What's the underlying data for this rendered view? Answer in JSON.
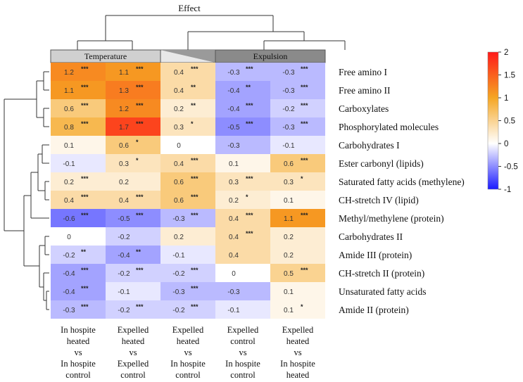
{
  "chart_data": {
    "type": "heatmap",
    "title": "Effect",
    "groups": [
      {
        "label": "Temperature",
        "columns": [
          0,
          1
        ]
      },
      {
        "label": "",
        "columns": [
          2
        ]
      },
      {
        "label": "Expulsion",
        "columns": [
          3,
          4
        ]
      }
    ],
    "columns": [
      [
        "In hospite",
        "heated",
        "vs",
        "In hospite",
        "control"
      ],
      [
        "Expelled",
        "heated",
        "vs",
        "Expelled",
        "control"
      ],
      [
        "Expelled",
        "heated",
        "vs",
        "In hospite",
        "control"
      ],
      [
        "Expelled",
        "control",
        "vs",
        "In hospite",
        "control"
      ],
      [
        "Expelled",
        "heated",
        "vs",
        "In hospite",
        "heated"
      ]
    ],
    "rows": [
      "Free amino I",
      "Free amino II",
      "Carboxylates",
      "Phosphorylated molecules",
      "Carbohydrates I",
      "Ester carbonyl (lipids)",
      "Saturated fatty acids (methylene)",
      "CH-stretch IV (lipid)",
      "Methyl/methylene (protein)",
      "Carbohydrates II",
      "Amide III (protein)",
      "CH-stretch II (protein)",
      "Unsaturated fatty acids",
      "Amide II (protein)"
    ],
    "values": [
      [
        1.2,
        1.1,
        0.4,
        -0.3,
        -0.3
      ],
      [
        1.1,
        1.3,
        0.4,
        -0.4,
        -0.3
      ],
      [
        0.6,
        1.2,
        0.2,
        -0.4,
        -0.2
      ],
      [
        0.8,
        1.7,
        0.3,
        -0.5,
        -0.3
      ],
      [
        0.1,
        0.6,
        0,
        -0.3,
        -0.1
      ],
      [
        -0.1,
        0.3,
        0.4,
        0.1,
        0.6
      ],
      [
        0.2,
        0.2,
        0.6,
        0.3,
        0.3
      ],
      [
        0.4,
        0.4,
        0.6,
        0.2,
        0.1
      ],
      [
        -0.6,
        -0.5,
        -0.3,
        0.4,
        1.1
      ],
      [
        0,
        -0.2,
        0.2,
        0.4,
        0.2
      ],
      [
        -0.2,
        -0.4,
        -0.1,
        0.4,
        0.2
      ],
      [
        -0.4,
        -0.2,
        -0.2,
        0,
        0.5
      ],
      [
        -0.4,
        -0.1,
        -0.3,
        -0.3,
        0.1
      ],
      [
        -0.3,
        -0.2,
        -0.2,
        -0.1,
        0.1
      ]
    ],
    "labels": [
      [
        "1.2",
        "1.1",
        "0.4",
        "-0.3",
        "-0.3"
      ],
      [
        "1.1",
        "1.3",
        "0.4",
        "-0.4",
        "-0.3"
      ],
      [
        "0.6",
        "1.2",
        "0.2",
        "-0.4",
        "-0.2"
      ],
      [
        "0.8",
        "1.7",
        "0.3",
        "-0.5",
        "-0.3"
      ],
      [
        "0.1",
        "0.6",
        "0",
        "-0.3",
        "-0.1"
      ],
      [
        "-0.1",
        "0.3",
        "0.4",
        "0.1",
        "0.6"
      ],
      [
        "0.2",
        "0.2",
        "0.6",
        "0.3",
        "0.3"
      ],
      [
        "0.4",
        "0.4",
        "0.6",
        "0.2",
        "0.1"
      ],
      [
        "-0.6",
        "-0.5",
        "-0.3",
        "0.4",
        "1.1"
      ],
      [
        "0",
        "-0.2",
        "0.2",
        "0.4",
        "0.2"
      ],
      [
        "-0.2",
        "-0.4",
        "-0.1",
        "0.4",
        "0.2"
      ],
      [
        "-0.4",
        "-0.2",
        "-0.2",
        "0",
        "0.5"
      ],
      [
        "-0.4",
        "-0.1",
        "-0.3",
        "-0.3",
        "0.1"
      ],
      [
        "-0.3",
        "-0.2",
        "-0.2",
        "-0.1",
        "0.1"
      ]
    ],
    "significance": [
      [
        "***",
        "***",
        "***",
        "***",
        "***"
      ],
      [
        "***",
        "***",
        "**",
        "**",
        "***"
      ],
      [
        "***",
        "***",
        "**",
        "***",
        "***"
      ],
      [
        "***",
        "***",
        "*",
        "***",
        "***"
      ],
      [
        "",
        "*",
        "",
        "",
        ""
      ],
      [
        "",
        "*",
        "***",
        "",
        "***"
      ],
      [
        "***",
        "",
        "***",
        "***",
        "*"
      ],
      [
        "***",
        "***",
        "***",
        "*",
        ""
      ],
      [
        "***",
        "***",
        "***",
        "***",
        "***"
      ],
      [
        "",
        "",
        "",
        "***",
        ""
      ],
      [
        "**",
        "**",
        "",
        "",
        ""
      ],
      [
        "***",
        "***",
        "***",
        "",
        "***"
      ],
      [
        "***",
        "",
        "***",
        "",
        ""
      ],
      [
        "***",
        "***",
        "***",
        "",
        "*"
      ]
    ],
    "colorbar": {
      "ticks": [
        "2",
        "1.5",
        "1",
        "0.5",
        "0",
        "-0.5",
        "-1"
      ],
      "min": -1,
      "max": 2,
      "colors": {
        "neg": "#1a1aff",
        "zero": "#ffffff",
        "mid": "#f5a623",
        "pos": "#ff1a1a"
      }
    }
  }
}
